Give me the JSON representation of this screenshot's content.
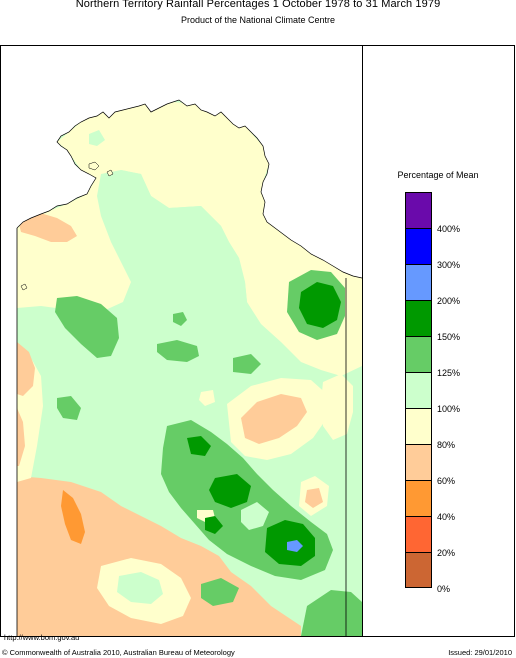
{
  "header": {
    "title": "Northern Territory Rainfall Percentages 1 October 1978 to 31 March 1979",
    "subtitle": "Product of the National Climate Centre"
  },
  "legend": {
    "title": "Percentage of Mean",
    "swatches": [
      "#6a0aab",
      "#0000ff",
      "#6699ff",
      "#009900",
      "#66cc66",
      "#ccffcc",
      "#ffffcc",
      "#ffcc99",
      "#ff9933",
      "#ff6633",
      "#cc6633"
    ],
    "ticks": [
      "400%",
      "300%",
      "200%",
      "150%",
      "125%",
      "100%",
      "80%",
      "60%",
      "40%",
      "20%",
      "0%"
    ]
  },
  "colors": {
    "band_0_20": "#cc6633",
    "band_20_40": "#ff6633",
    "band_40_60": "#ff9933",
    "band_60_80": "#ffcc99",
    "band_80_100": "#ffffcc",
    "band_100_125": "#ccffcc",
    "band_125_150": "#66cc66",
    "band_150_200": "#009900",
    "band_200_300": "#6699ff",
    "band_300_400": "#0000ff",
    "band_400_plus": "#6a0aab"
  },
  "footer": {
    "url": "http://www.bom.gov.au",
    "copyright": "© Commonwealth of Australia 2010, Australian Bureau of Meteorology",
    "issued": "Issued: 29/01/2010"
  }
}
